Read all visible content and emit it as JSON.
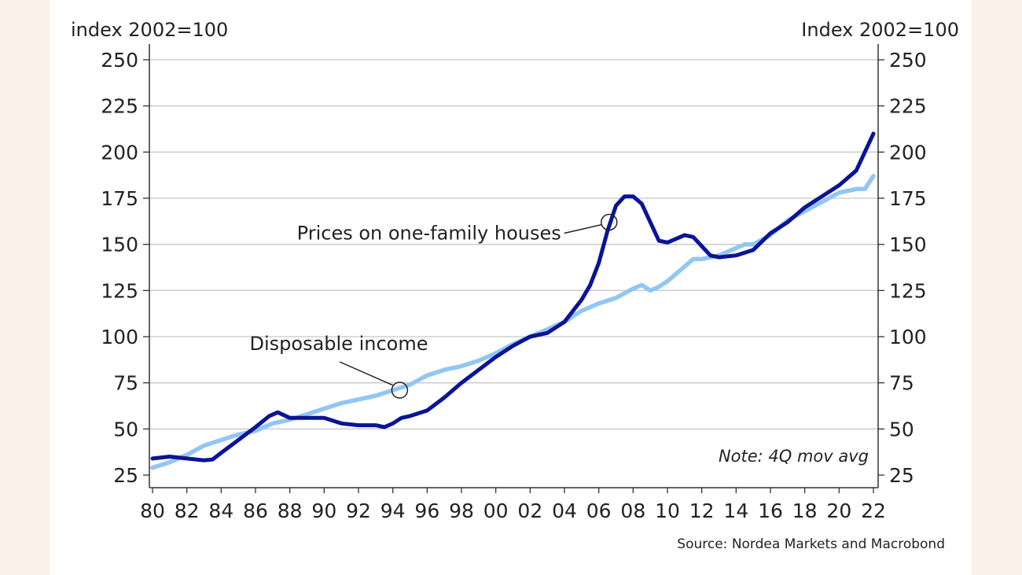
{
  "chart_data": {
    "type": "line",
    "left_axis_label": "index 2002=100",
    "right_axis_label": "Index 2002=100",
    "ylim": [
      25,
      250
    ],
    "xlim": [
      1980,
      2022
    ],
    "y_ticks": [
      25,
      50,
      75,
      100,
      125,
      150,
      175,
      200,
      225,
      250
    ],
    "x_tick_labels": [
      "80",
      "82",
      "84",
      "86",
      "88",
      "90",
      "92",
      "94",
      "96",
      "98",
      "00",
      "02",
      "04",
      "06",
      "08",
      "10",
      "12",
      "14",
      "16",
      "18",
      "20",
      "22"
    ],
    "grid": "horizontal",
    "annotations": {
      "houses": "Prices on one-family houses",
      "income": "Disposable income",
      "note": "Note: 4Q mov avg"
    },
    "source": "Source: Nordea Markets and Macrobond",
    "series": [
      {
        "name": "Prices on one-family houses",
        "color": "#0a1496",
        "x": [
          1980,
          1981,
          1982,
          1983,
          1983.5,
          1984,
          1985,
          1986,
          1986.8,
          1987.3,
          1988,
          1989,
          1990,
          1991,
          1992,
          1993,
          1993.5,
          1994,
          1994.5,
          1995,
          1996,
          1997,
          1998,
          1999,
          2000,
          2001,
          2002,
          2003,
          2004,
          2005,
          2005.5,
          2006,
          2006.5,
          2007,
          2007.5,
          2008,
          2008.5,
          2009,
          2009.5,
          2010,
          2011,
          2011.5,
          2012,
          2012.5,
          2013,
          2014,
          2015,
          2016,
          2017,
          2018,
          2019,
          2020,
          2021,
          2021.5,
          2022
        ],
        "values": [
          34,
          35,
          34,
          33,
          33.5,
          37,
          44,
          51,
          57,
          59,
          56,
          56,
          56,
          53,
          52,
          52,
          51,
          53,
          56,
          57,
          60,
          67,
          75,
          82,
          89,
          95,
          100,
          102,
          108,
          120,
          128,
          140,
          157,
          171,
          176,
          176,
          172,
          162,
          152,
          151,
          155,
          154,
          149,
          144,
          143,
          144,
          147,
          156,
          162,
          170,
          176,
          182,
          190,
          200,
          210
        ]
      },
      {
        "name": "Disposable income",
        "color": "#92c6f4",
        "x": [
          1980,
          1981,
          1982,
          1983,
          1984,
          1985,
          1986,
          1987,
          1988,
          1989,
          1990,
          1991,
          1992,
          1993,
          1994,
          1995,
          1996,
          1997,
          1998,
          1999,
          2000,
          2001,
          2002,
          2003,
          2004,
          2005,
          2006,
          2007,
          2008,
          2008.5,
          2009,
          2009.5,
          2010,
          2011,
          2011.5,
          2012,
          2013,
          2014,
          2014.5,
          2015,
          2016,
          2017,
          2018,
          2019,
          2020,
          2021,
          2021.5,
          2022
        ],
        "values": [
          29,
          32,
          36,
          41,
          44,
          47,
          49,
          53,
          55,
          58,
          61,
          64,
          66,
          68,
          71,
          74,
          79,
          82,
          84,
          87,
          91,
          96,
          100,
          104,
          108,
          114,
          118,
          121,
          126,
          128,
          125,
          127,
          130,
          138,
          142,
          142,
          144,
          148,
          150,
          150,
          155,
          163,
          168,
          173,
          178,
          180,
          180,
          187
        ]
      }
    ]
  }
}
